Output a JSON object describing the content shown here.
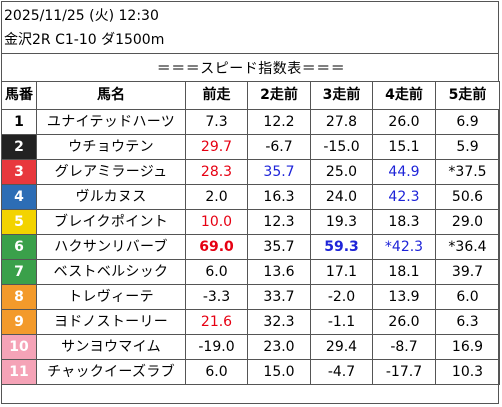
{
  "header": {
    "datetime": "2025/11/25 (火) 12:30",
    "race": "金沢2R C1-10 ダ1500m"
  },
  "title": "＝＝＝スピード指数表＝＝＝",
  "columns": [
    "馬番",
    "馬名",
    "前走",
    "2走前",
    "3走前",
    "4走前",
    "5走前"
  ],
  "colors": {
    "red": "#e60012",
    "blue": "#1e24d8",
    "waku": [
      "#ffffff",
      "#222222",
      "#e8383d",
      "#2d6db5",
      "#f3d300",
      "#3aa04a",
      "#f39a2b",
      "#f39a2b",
      "#f39a2b",
      "#f5a3b7",
      "#f5a3b7"
    ]
  },
  "rows": [
    {
      "num": "1",
      "name": "ユナイテッドハーツ",
      "num_bg": "#ffffff",
      "num_fg": "#000000",
      "v": [
        {
          "t": "7.3"
        },
        {
          "t": "12.2"
        },
        {
          "t": "27.8"
        },
        {
          "t": "26.0"
        },
        {
          "t": "6.9"
        }
      ]
    },
    {
      "num": "2",
      "name": "ウチョウテン",
      "num_bg": "#222222",
      "num_fg": "#ffffff",
      "v": [
        {
          "t": "29.7",
          "c": "red"
        },
        {
          "t": "-6.7"
        },
        {
          "t": "-15.0"
        },
        {
          "t": "15.1"
        },
        {
          "t": "5.9"
        }
      ]
    },
    {
      "num": "3",
      "name": "グレアミラージュ",
      "num_bg": "#e8383d",
      "num_fg": "#ffffff",
      "v": [
        {
          "t": "28.3",
          "c": "red"
        },
        {
          "t": "35.7",
          "c": "blue"
        },
        {
          "t": "25.0"
        },
        {
          "t": "44.9",
          "c": "blue"
        },
        {
          "t": "*37.5"
        }
      ]
    },
    {
      "num": "4",
      "name": "ヴルカヌス",
      "num_bg": "#2d6db5",
      "num_fg": "#ffffff",
      "v": [
        {
          "t": "2.0"
        },
        {
          "t": "16.3"
        },
        {
          "t": "24.0"
        },
        {
          "t": "42.3",
          "c": "blue"
        },
        {
          "t": "50.6"
        }
      ]
    },
    {
      "num": "5",
      "name": "ブレイクポイント",
      "num_bg": "#f3d300",
      "num_fg": "#ffffff",
      "v": [
        {
          "t": "10.0",
          "c": "red"
        },
        {
          "t": "12.3"
        },
        {
          "t": "19.3"
        },
        {
          "t": "18.3"
        },
        {
          "t": "29.0"
        }
      ]
    },
    {
      "num": "6",
      "name": "ハクサンリバーブ",
      "num_bg": "#3aa04a",
      "num_fg": "#ffffff",
      "v": [
        {
          "t": "69.0",
          "c": "red",
          "b": true
        },
        {
          "t": "35.7"
        },
        {
          "t": "59.3",
          "c": "blue",
          "b": true
        },
        {
          "t": "*42.3",
          "c": "blue"
        },
        {
          "t": "*36.4"
        }
      ]
    },
    {
      "num": "7",
      "name": "ベストベルシック",
      "num_bg": "#3aa04a",
      "num_fg": "#ffffff",
      "v": [
        {
          "t": "6.0"
        },
        {
          "t": "13.6"
        },
        {
          "t": "17.1"
        },
        {
          "t": "18.1"
        },
        {
          "t": "39.7"
        }
      ]
    },
    {
      "num": "8",
      "name": "トレヴィーテ",
      "num_bg": "#f39a2b",
      "num_fg": "#ffffff",
      "v": [
        {
          "t": "-3.3"
        },
        {
          "t": "33.7"
        },
        {
          "t": "-2.0"
        },
        {
          "t": "13.9"
        },
        {
          "t": "6.0"
        }
      ]
    },
    {
      "num": "9",
      "name": "ヨドノストーリー",
      "num_bg": "#f39a2b",
      "num_fg": "#ffffff",
      "v": [
        {
          "t": "21.6",
          "c": "red"
        },
        {
          "t": "32.3"
        },
        {
          "t": "-1.1"
        },
        {
          "t": "26.0"
        },
        {
          "t": "6.3"
        }
      ]
    },
    {
      "num": "10",
      "name": "サンヨウマイム",
      "num_bg": "#f5a3b7",
      "num_fg": "#ffffff",
      "mark": true,
      "v": [
        {
          "t": "-19.0"
        },
        {
          "t": "23.0"
        },
        {
          "t": "29.4"
        },
        {
          "t": "-8.7"
        },
        {
          "t": "16.9"
        }
      ]
    },
    {
      "num": "11",
      "name": "チャックイーズラブ",
      "num_bg": "#f5a3b7",
      "num_fg": "#ffffff",
      "v": [
        {
          "t": "6.0"
        },
        {
          "t": "15.0"
        },
        {
          "t": "-4.7"
        },
        {
          "t": "-17.7"
        },
        {
          "t": "10.3"
        }
      ]
    }
  ]
}
